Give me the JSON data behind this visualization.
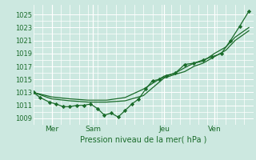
{
  "bg_color": "#cce8e0",
  "grid_color": "#ffffff",
  "line_color": "#1a6b2a",
  "marker_color": "#1a6b2a",
  "title": "Pression niveau de la mer( hPa )",
  "ylabel_ticks": [
    1009,
    1011,
    1013,
    1015,
    1017,
    1019,
    1021,
    1023,
    1025
  ],
  "ylim": [
    1008.0,
    1026.5
  ],
  "xtick_labels": [
    "Mer",
    "Sam",
    "Jeu",
    "Ven"
  ],
  "xtick_positions": [
    8,
    26,
    57,
    79
  ],
  "vline_positions": [
    8,
    26,
    57,
    79
  ],
  "xlim": [
    0,
    96
  ],
  "line1_x": [
    0,
    3,
    7,
    10,
    13,
    16,
    19,
    22,
    25,
    28,
    31,
    34,
    37,
    40,
    43,
    46,
    49,
    52,
    55,
    58,
    62,
    66,
    70,
    74,
    78,
    82,
    86,
    90,
    94
  ],
  "line1_y": [
    1013.0,
    1012.2,
    1011.5,
    1011.2,
    1010.8,
    1010.8,
    1011.0,
    1011.0,
    1011.2,
    1010.5,
    1009.5,
    1009.8,
    1009.2,
    1010.2,
    1011.2,
    1012.0,
    1013.5,
    1014.8,
    1015.0,
    1015.5,
    1016.0,
    1017.3,
    1017.5,
    1018.0,
    1018.5,
    1019.0,
    1021.0,
    1023.2,
    1025.5
  ],
  "line2_x": [
    0,
    8,
    16,
    24,
    32,
    40,
    48,
    57,
    62,
    66,
    70,
    74,
    79,
    84,
    88,
    94
  ],
  "line2_y": [
    1013.0,
    1012.0,
    1011.7,
    1011.5,
    1011.5,
    1011.7,
    1012.5,
    1015.2,
    1015.8,
    1016.2,
    1017.0,
    1017.5,
    1018.5,
    1019.5,
    1021.0,
    1022.5
  ],
  "line3_x": [
    0,
    8,
    16,
    24,
    32,
    40,
    48,
    57,
    62,
    66,
    70,
    74,
    79,
    84,
    88,
    94
  ],
  "line3_y": [
    1013.0,
    1012.3,
    1012.0,
    1011.8,
    1011.8,
    1012.2,
    1013.5,
    1015.5,
    1016.0,
    1016.8,
    1017.5,
    1017.8,
    1019.0,
    1020.0,
    1021.5,
    1023.0
  ]
}
